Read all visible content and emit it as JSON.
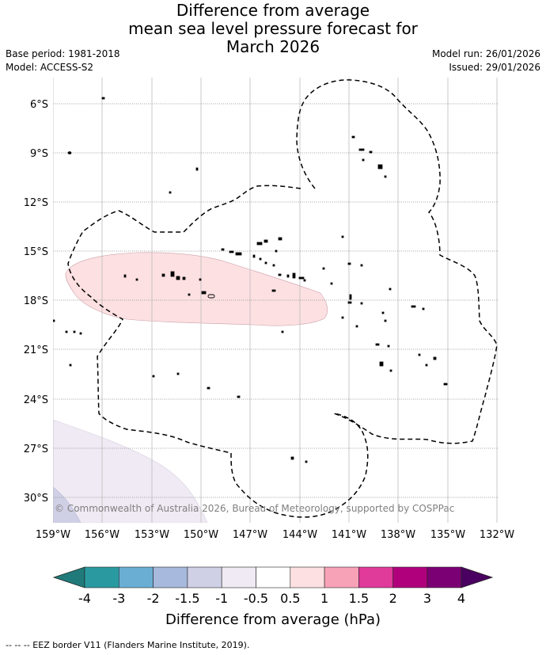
{
  "title": {
    "line1": "Difference from average",
    "line2": "mean sea level pressure forecast for",
    "line3": "March 2026"
  },
  "meta": {
    "base_period": "Base period: 1981-2018",
    "model": "Model: ACCESS-S2",
    "model_run": "Model run: 26/01/2026",
    "issued": "Issued: 29/01/2026"
  },
  "map": {
    "lat_labels": [
      "6°S",
      "9°S",
      "12°S",
      "15°S",
      "18°S",
      "21°S",
      "24°S",
      "27°S",
      "30°S"
    ],
    "lon_labels": [
      "159°W",
      "156°W",
      "153°W",
      "150°W",
      "147°W",
      "144°W",
      "141°W",
      "138°W",
      "135°W",
      "132°W"
    ],
    "copyright": "© Commonwealth of Australia 2026, Bureau of Meteorology, supported by COSPPac"
  },
  "colorbar": {
    "title": "Difference from average (hPa)",
    "tick_labels": [
      "-4",
      "-3",
      "-2",
      "-1.5",
      "-1",
      "-0.5",
      "0.5",
      "1",
      "1.5",
      "2",
      "3",
      "4"
    ],
    "colors": [
      "#207a7a",
      "#2a9aa0",
      "#6aaed4",
      "#a7b9dc",
      "#cfd0e6",
      "#efeaf3",
      "#ffffff",
      "#fde0e2",
      "#f8a2b8",
      "#e03a9a",
      "#b0007c",
      "#7a0073",
      "#4a0060"
    ]
  },
  "legend": {
    "eez": "--  --  -- EEZ border V11 (Flanders Marine Institute, 2019)."
  }
}
